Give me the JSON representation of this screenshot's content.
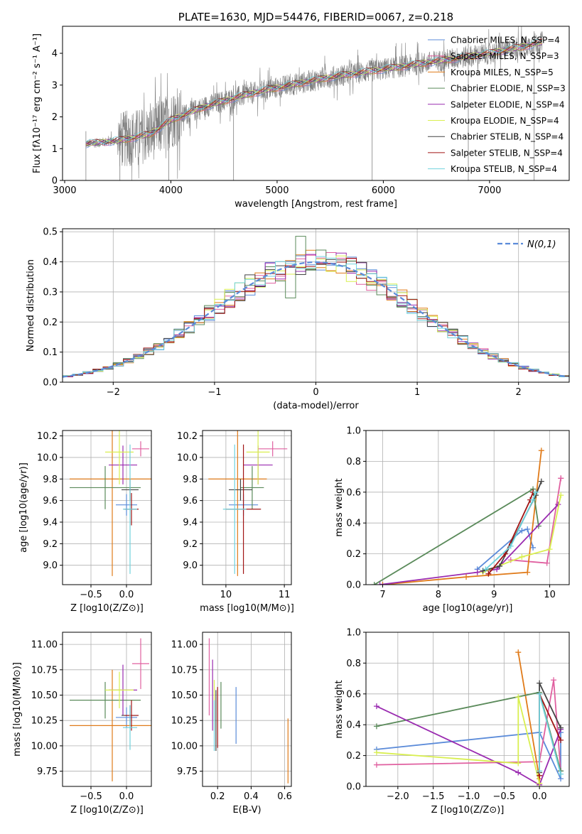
{
  "chart_data": [
    {
      "type": "line",
      "title": "PLATE=1630, MJD=54476, FIBERID=0067, z=0.218",
      "xlabel": "wavelength [Angstrom, rest frame]",
      "ylabel": "Flux [fλ10⁻¹⁷ erg cm⁻² s⁻¹ A⁻¹]",
      "xlim": [
        2980,
        7750
      ],
      "ylim": [
        0,
        4.85
      ],
      "xticks": [
        3000,
        4000,
        5000,
        6000,
        7000
      ],
      "yticks": [
        0,
        1,
        2,
        3,
        4
      ],
      "grid": false,
      "legend_position": "top-right",
      "legend": [
        {
          "text": "Chabrier MILES, N_SSP=4",
          "color": "#5b8bd9"
        },
        {
          "text": "Salpeter MILES, N_SSP=3",
          "color": "#e060a0"
        },
        {
          "text": "Kroupa MILES, N_SSP=5",
          "color": "#e07b1a"
        },
        {
          "text": "Chabrier ELODIE, N_SSP=3",
          "color": "#5a8a5a"
        },
        {
          "text": "Salpeter ELODIE, N_SSP=4",
          "color": "#9a2bb0"
        },
        {
          "text": "Kroupa ELODIE, N_SSP=4",
          "color": "#d9ef50"
        },
        {
          "text": "Chabrier STELIB, N_SSP=4",
          "color": "#444444"
        },
        {
          "text": "Salpeter STELIB, N_SSP=4",
          "color": "#a01515"
        },
        {
          "text": "Kroupa STELIB, N_SSP=4",
          "color": "#70d2dd"
        }
      ],
      "spectrum_trend": {
        "x": [
          3200,
          3500,
          3800,
          4000,
          4300,
          4600,
          4900,
          5200,
          5500,
          5800,
          6100,
          6400,
          6700,
          7000,
          7300,
          7500
        ],
        "y": [
          1.15,
          1.25,
          1.45,
          1.9,
          2.3,
          2.6,
          2.85,
          3.05,
          3.25,
          3.4,
          3.55,
          3.7,
          3.85,
          4.0,
          4.2,
          4.35
        ]
      }
    },
    {
      "type": "bar",
      "xlabel": "(data-model)/error",
      "ylabel": "Normed distribution",
      "xlim": [
        -2.5,
        2.5
      ],
      "ylim": [
        0,
        0.51
      ],
      "xticks": [
        -2,
        -1,
        0,
        1,
        2
      ],
      "yticks": [
        0.0,
        0.1,
        0.2,
        0.3,
        0.4,
        0.5
      ],
      "grid": true,
      "legend_position": "top-right",
      "legend": [
        {
          "text": "N(0,1)",
          "style": "dashed",
          "color": "#5b8bd9"
        }
      ],
      "bin_width": 0.1,
      "reference_curve": "gaussian mean 0 sigma 1"
    },
    {
      "type": "scatter",
      "xlabel": "Z [log10(Z/Z⊙)]",
      "ylabel": "age  [log10(age/yr)]",
      "xlim": [
        -0.9,
        0.35
      ],
      "ylim": [
        8.82,
        10.25
      ],
      "xticks": [
        -0.5,
        0.0
      ],
      "yticks": [
        9.0,
        9.2,
        9.4,
        9.6,
        9.8,
        10.0,
        10.2
      ],
      "grid": true,
      "series": [
        {
          "color": "#5b8bd9",
          "x": 0.0,
          "y": 9.56,
          "xerr": 0.15,
          "yerr": 0.1
        },
        {
          "color": "#e060a0",
          "x": 0.2,
          "y": 10.08,
          "xerr": 0.12,
          "yerr": 0.07
        },
        {
          "color": "#e07b1a",
          "x": -0.2,
          "y": 9.8,
          "xerr": 0.6,
          "yerr": 0.9
        },
        {
          "color": "#5a8a5a",
          "x": -0.3,
          "y": 9.72,
          "xerr": 0.5,
          "yerr": 0.2
        },
        {
          "color": "#9a2bb0",
          "x": -0.05,
          "y": 9.93,
          "xerr": 0.2,
          "yerr": 0.18
        },
        {
          "color": "#d9ef50",
          "x": -0.1,
          "y": 10.05,
          "xerr": 0.2,
          "yerr": 0.3
        },
        {
          "color": "#444444",
          "x": 0.05,
          "y": 9.7,
          "xerr": 0.12,
          "yerr": 0.1
        },
        {
          "color": "#a01515",
          "x": 0.07,
          "y": 9.52,
          "xerr": 0.1,
          "yerr": 0.15
        },
        {
          "color": "#70d2dd",
          "x": 0.05,
          "y": 9.52,
          "xerr": 0.1,
          "yerr": 0.6
        }
      ]
    },
    {
      "type": "scatter",
      "xlabel": "mass [log10(M/M⊙)]",
      "xlim": [
        9.6,
        11.12
      ],
      "ylim": [
        8.82,
        10.25
      ],
      "xticks": [
        10,
        11
      ],
      "yticks": [
        9.0,
        9.2,
        9.4,
        9.6,
        9.8,
        10.0,
        10.2
      ],
      "grid": true,
      "series": [
        {
          "color": "#5b8bd9",
          "x": 10.3,
          "y": 9.56,
          "xerr": 0.25,
          "yerr": 0.1
        },
        {
          "color": "#e060a0",
          "x": 10.8,
          "y": 10.08,
          "xerr": 0.25,
          "yerr": 0.07
        },
        {
          "color": "#e07b1a",
          "x": 10.2,
          "y": 9.8,
          "xerr": 0.5,
          "yerr": 0.9
        },
        {
          "color": "#5a8a5a",
          "x": 10.45,
          "y": 9.72,
          "xerr": 0.2,
          "yerr": 0.2
        },
        {
          "color": "#9a2bb0",
          "x": 10.55,
          "y": 9.93,
          "xerr": 0.25,
          "yerr": 0.18
        },
        {
          "color": "#d9ef50",
          "x": 10.55,
          "y": 10.05,
          "xerr": 0.2,
          "yerr": 0.3
        },
        {
          "color": "#444444",
          "x": 10.25,
          "y": 9.7,
          "xerr": 0.2,
          "yerr": 0.1
        },
        {
          "color": "#a01515",
          "x": 10.3,
          "y": 9.52,
          "xerr": 0.3,
          "yerr": 0.6
        },
        {
          "color": "#70d2dd",
          "x": 10.15,
          "y": 9.52,
          "xerr": 0.2,
          "yerr": 0.6
        }
      ]
    },
    {
      "type": "line",
      "xlabel": "age  [log10(age/yr)]",
      "ylabel": "mass weight",
      "xlim": [
        6.7,
        10.35
      ],
      "ylim": [
        0,
        1.0
      ],
      "xticks": [
        7,
        8,
        9,
        10
      ],
      "yticks": [
        0.0,
        0.2,
        0.4,
        0.6,
        0.8,
        1.0
      ],
      "grid": true,
      "series": [
        {
          "color": "#5b8bd9",
          "x": [
            8.7,
            9.5,
            9.6,
            9.7
          ],
          "y": [
            0.1,
            0.35,
            0.36,
            0.24
          ]
        },
        {
          "color": "#e060a0",
          "x": [
            9.3,
            9.95,
            10.2,
            10.2
          ],
          "y": [
            0.16,
            0.14,
            0.69,
            0.69
          ]
        },
        {
          "color": "#e07b1a",
          "x": [
            7.0,
            8.5,
            9.6,
            9.85
          ],
          "y": [
            0.0,
            0.05,
            0.08,
            0.87
          ]
        },
        {
          "color": "#5a8a5a",
          "x": [
            6.85,
            9.7,
            9.8
          ],
          "y": [
            0.0,
            0.62,
            0.38
          ]
        },
        {
          "color": "#9a2bb0",
          "x": [
            6.95,
            8.7,
            9.05,
            10.15
          ],
          "y": [
            0.0,
            0.08,
            0.1,
            0.52
          ]
        },
        {
          "color": "#d9ef50",
          "x": [
            8.8,
            9.5,
            10.0,
            10.2
          ],
          "y": [
            0.08,
            0.18,
            0.23,
            0.58
          ]
        },
        {
          "color": "#444444",
          "x": [
            8.8,
            9.1,
            9.75,
            9.85
          ],
          "y": [
            0.09,
            0.12,
            0.58,
            0.67
          ]
        },
        {
          "color": "#a01515",
          "x": [
            8.9,
            9.2,
            9.65,
            9.7
          ],
          "y": [
            0.07,
            0.2,
            0.55,
            0.6
          ]
        },
        {
          "color": "#70d2dd",
          "x": [
            8.85,
            9.3,
            9.7,
            9.75
          ],
          "y": [
            0.1,
            0.25,
            0.55,
            0.6
          ]
        }
      ]
    },
    {
      "type": "scatter",
      "xlabel": "Z [log10(Z/Z⊙)]",
      "ylabel": "mass [log10(M/M⊙)]",
      "xlim": [
        -0.9,
        0.35
      ],
      "ylim": [
        9.6,
        11.12
      ],
      "xticks": [
        -0.5,
        0.0
      ],
      "yticks": [
        9.75,
        10.0,
        10.25,
        10.5,
        10.75,
        11.0
      ],
      "grid": true,
      "series": [
        {
          "color": "#5b8bd9",
          "x": 0.0,
          "y": 10.28,
          "xerr": 0.15,
          "yerr": 0.1
        },
        {
          "color": "#e060a0",
          "x": 0.2,
          "y": 10.81,
          "xerr": 0.12,
          "yerr": 0.25
        },
        {
          "color": "#e07b1a",
          "x": -0.2,
          "y": 10.2,
          "xerr": 0.6,
          "yerr": 0.55
        },
        {
          "color": "#5a8a5a",
          "x": -0.3,
          "y": 10.45,
          "xerr": 0.5,
          "yerr": 0.18
        },
        {
          "color": "#9a2bb0",
          "x": -0.05,
          "y": 10.55,
          "xerr": 0.2,
          "yerr": 0.25
        },
        {
          "color": "#d9ef50",
          "x": -0.1,
          "y": 10.55,
          "xerr": 0.2,
          "yerr": 0.18
        },
        {
          "color": "#444444",
          "x": 0.05,
          "y": 10.3,
          "xerr": 0.12,
          "yerr": 0.1
        },
        {
          "color": "#a01515",
          "x": 0.07,
          "y": 10.3,
          "xerr": 0.1,
          "yerr": 0.15
        },
        {
          "color": "#70d2dd",
          "x": 0.05,
          "y": 10.18,
          "xerr": 0.1,
          "yerr": 0.22
        }
      ]
    },
    {
      "type": "scatter",
      "xlabel": "E(B-V)",
      "xlim": [
        0.11,
        0.64
      ],
      "ylim": [
        9.6,
        11.12
      ],
      "xticks": [
        0.2,
        0.4,
        0.6
      ],
      "yticks": [
        9.75,
        10.0,
        10.25,
        10.5,
        10.75,
        11.0
      ],
      "grid": true,
      "series": [
        {
          "color": "#5b8bd9",
          "x": 0.31,
          "y": 10.3,
          "yerr": 0.28
        },
        {
          "color": "#e060a0",
          "x": 0.15,
          "y": 10.68,
          "yerr": 0.38
        },
        {
          "color": "#e07b1a",
          "x": 0.62,
          "y": 9.95,
          "yerr": 0.32
        },
        {
          "color": "#5a8a5a",
          "x": 0.22,
          "y": 10.4,
          "yerr": 0.23
        },
        {
          "color": "#9a2bb0",
          "x": 0.17,
          "y": 10.5,
          "yerr": 0.35
        },
        {
          "color": "#d9ef50",
          "x": 0.18,
          "y": 10.4,
          "yerr": 0.25
        },
        {
          "color": "#444444",
          "x": 0.19,
          "y": 10.25,
          "yerr": 0.3
        },
        {
          "color": "#a01515",
          "x": 0.2,
          "y": 10.28,
          "yerr": 0.3
        },
        {
          "color": "#70d2dd",
          "x": 0.18,
          "y": 10.2,
          "yerr": 0.25
        }
      ]
    },
    {
      "type": "line",
      "xlabel": "Z [log10(Z/Z⊙)]",
      "ylabel": "mass weight",
      "xlim": [
        -2.45,
        0.42
      ],
      "ylim": [
        0,
        1.0
      ],
      "xticks": [
        -2.0,
        -1.5,
        -1.0,
        -0.5,
        0.0
      ],
      "yticks": [
        0.0,
        0.2,
        0.4,
        0.6,
        0.8,
        1.0
      ],
      "grid": true,
      "series": [
        {
          "color": "#5b8bd9",
          "x": [
            -2.3,
            0.0,
            0.3,
            0.3
          ],
          "y": [
            0.24,
            0.35,
            0.05,
            0.35
          ]
        },
        {
          "color": "#e060a0",
          "x": [
            -2.3,
            0.0,
            0.2,
            0.3
          ],
          "y": [
            0.14,
            0.16,
            0.69,
            0.1
          ]
        },
        {
          "color": "#e07b1a",
          "x": [
            -0.3,
            0.0,
            0.0
          ],
          "y": [
            0.87,
            0.05,
            0.02
          ]
        },
        {
          "color": "#5a8a5a",
          "x": [
            -2.3,
            0.0,
            0.3
          ],
          "y": [
            0.39,
            0.61,
            0.1
          ]
        },
        {
          "color": "#9a2bb0",
          "x": [
            -2.3,
            -0.3,
            0.0,
            0.3
          ],
          "y": [
            0.52,
            0.09,
            0.01,
            0.37
          ]
        },
        {
          "color": "#d9ef50",
          "x": [
            -2.3,
            -0.3,
            -0.3,
            0.0
          ],
          "y": [
            0.22,
            0.15,
            0.58,
            0.02
          ]
        },
        {
          "color": "#444444",
          "x": [
            0.0,
            0.0,
            0.3
          ],
          "y": [
            0.09,
            0.67,
            0.38
          ]
        },
        {
          "color": "#a01515",
          "x": [
            0.0,
            0.0,
            0.3
          ],
          "y": [
            0.07,
            0.6,
            0.3
          ]
        },
        {
          "color": "#70d2dd",
          "x": [
            0.0,
            0.0,
            0.3
          ],
          "y": [
            0.1,
            0.6,
            0.08
          ]
        }
      ]
    }
  ]
}
